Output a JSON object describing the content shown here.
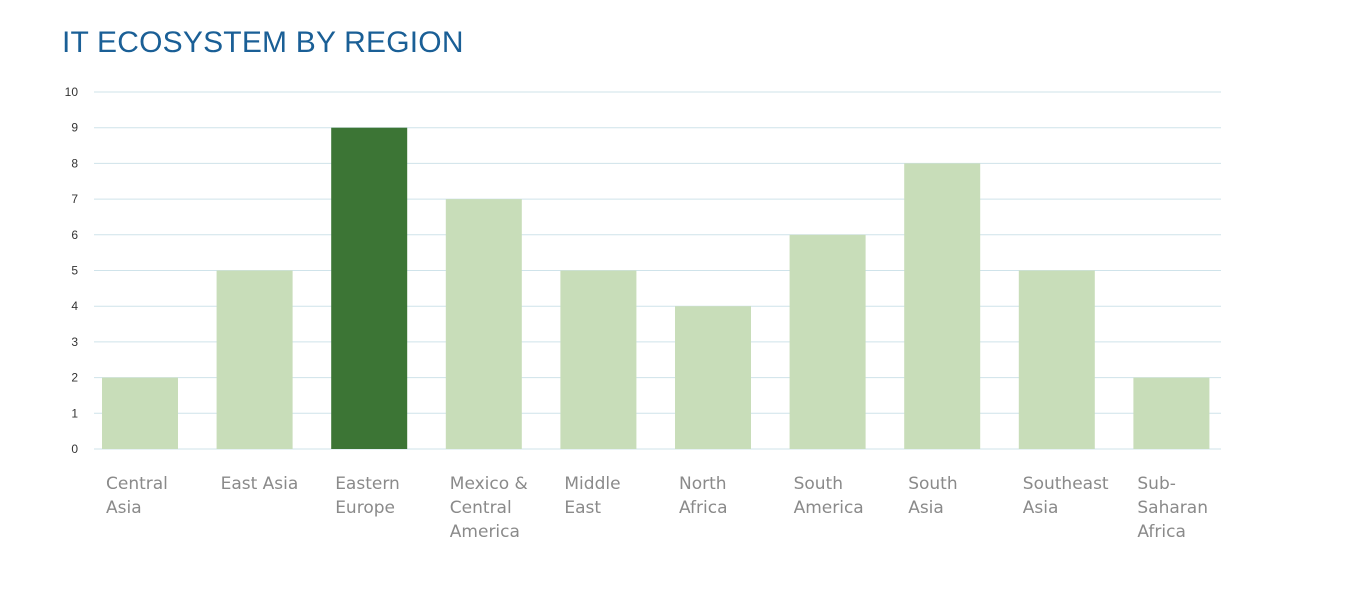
{
  "chart_data": {
    "type": "bar",
    "title": "IT ECOSYSTEM BY REGION",
    "xlabel": "",
    "ylabel": "",
    "ylim": [
      0,
      10
    ],
    "yticks": [
      0,
      1,
      2,
      3,
      4,
      5,
      6,
      7,
      8,
      9,
      10
    ],
    "grid": true,
    "categories": [
      [
        "Central",
        "Asia"
      ],
      [
        "East Asia"
      ],
      [
        "Eastern",
        "Europe"
      ],
      [
        "Mexico &",
        "Central",
        "America"
      ],
      [
        "Middle",
        "East"
      ],
      [
        "North",
        "Africa"
      ],
      [
        "South",
        "America"
      ],
      [
        "South",
        "Asia"
      ],
      [
        "Southeast",
        "Asia"
      ],
      [
        "Sub-",
        "Saharan",
        "Africa"
      ]
    ],
    "values": [
      2,
      5,
      9,
      7,
      5,
      4,
      6,
      8,
      5,
      2
    ],
    "highlight_index": 2,
    "colors": {
      "bar": "#c8ddb9",
      "highlight": "#3c7535",
      "grid": "#cfe3ea",
      "title": "#1a5f96"
    }
  }
}
